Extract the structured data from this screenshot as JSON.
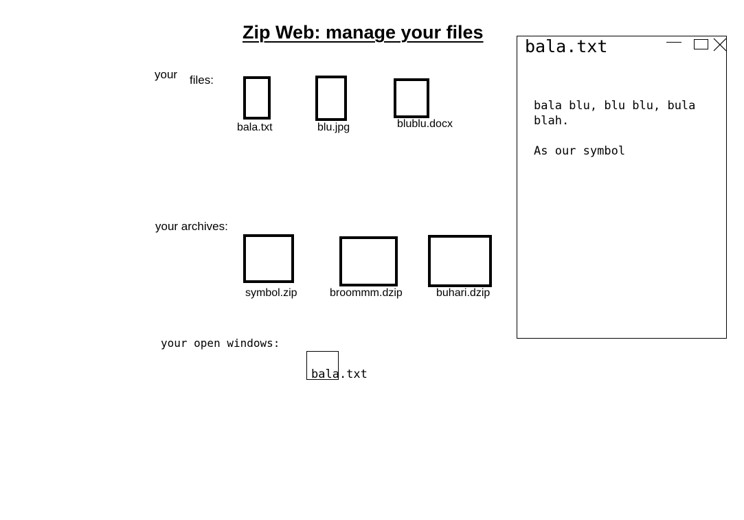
{
  "header": {
    "title": "Zip Web: manage your files"
  },
  "files_section": {
    "label_part1": "your",
    "label_part2": "files:",
    "items": [
      {
        "name": "bala.txt",
        "icon": "text-file-icon"
      },
      {
        "name": "blu.jpg",
        "icon": "image-file-icon"
      },
      {
        "name": "blublu.docx",
        "icon": "document-file-icon"
      }
    ]
  },
  "archives_section": {
    "label": "your archives:",
    "items": [
      {
        "name": "symbol.zip",
        "icon": "zip-archive-icon"
      },
      {
        "name": "broommm.dzip",
        "icon": "dzip-archive-icon"
      },
      {
        "name": "buhari.dzip",
        "icon": "dzip-archive-icon"
      }
    ]
  },
  "open_windows_section": {
    "label": "your open windows:",
    "items": [
      {
        "name": "bala.txt"
      }
    ]
  },
  "window": {
    "title": "bala.txt",
    "content_line1": "bala blu, blu blu, bula blah.",
    "content_line2": "As our symbol",
    "controls": [
      "minimize-icon",
      "maximize-icon",
      "close-icon"
    ]
  }
}
